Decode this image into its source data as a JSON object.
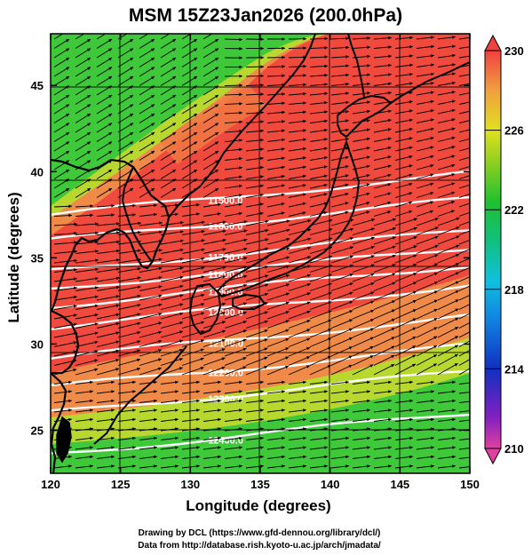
{
  "title": "MSM 15Z23Jan2026 (200.0hPa)",
  "xlabel": "Longitude (degrees)",
  "ylabel": "Latitude  (degrees)",
  "credits": [
    "Drawing by DCL (https://www.gfd-dennou.org/library/dcl/)",
    "Data from http://database.rish.kyoto-u.ac.jp/arch/jmadata/"
  ],
  "chart_data": {
    "type": "heatmap",
    "projection": "longitude-latitude",
    "xlim": [
      120,
      150
    ],
    "ylim": [
      22.5,
      48
    ],
    "x_ticks": [
      "120",
      "125",
      "130",
      "135",
      "140",
      "145",
      "150"
    ],
    "y_ticks": [
      "25",
      "30",
      "35",
      "40",
      "45"
    ],
    "grid": true,
    "shading": {
      "variable": "temperature",
      "range": [
        210,
        230
      ],
      "colorbar_ticks": [
        "210",
        "214",
        "218",
        "222",
        "226",
        "230"
      ],
      "colors": {
        "210": "#e040a0",
        "212": "#8020c0",
        "214": "#1030c0",
        "216": "#1080e0",
        "218": "#10c0e0",
        "220": "#10c080",
        "222": "#20c030",
        "224": "#90d020",
        "226": "#e0e020",
        "228": "#f0a040",
        "230": "#f04040"
      }
    },
    "contours": {
      "variable": "geopotential height",
      "color": "#ffffff",
      "levels": [
        {
          "label": "11500.0",
          "lat": 37.5
        },
        {
          "label": "11600.0",
          "lat": 36.0
        },
        {
          "label": "11700.0",
          "lat": 34.2
        },
        {
          "label": "11800.0",
          "lat": 33.2
        },
        {
          "label": "11900.0",
          "lat": 32.2
        },
        {
          "label": "12000.0",
          "lat": 31.0
        },
        {
          "label": "12100.0",
          "lat": 29.2
        },
        {
          "label": "12200.0",
          "lat": 27.5
        },
        {
          "label": "12300.0",
          "lat": 26.0
        },
        {
          "label": "12400.0",
          "lat": 23.6
        }
      ]
    },
    "vectors": {
      "variable": "wind",
      "color": "#000000",
      "direction": "westerly"
    }
  },
  "colors": {
    "warm": "#f04a3e",
    "cold_green": "#3ec83a",
    "contour": "#ffffff",
    "coastline": "#000000"
  }
}
